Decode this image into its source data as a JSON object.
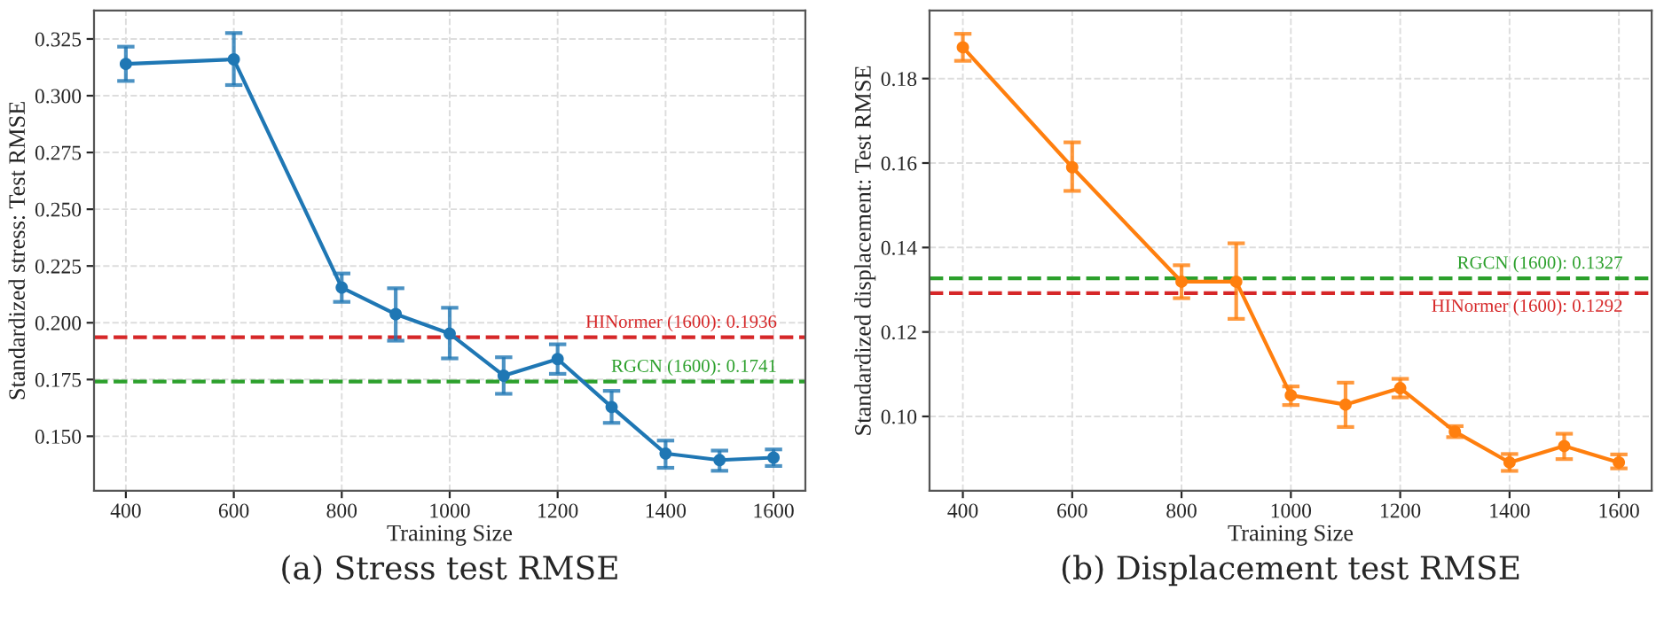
{
  "chart_data": [
    {
      "type": "line",
      "title": "(a) Stress test RMSE",
      "xlabel": "Training Size",
      "ylabel": "Standardized stress: Test RMSE",
      "x": [
        400,
        600,
        800,
        900,
        1000,
        1100,
        1200,
        1300,
        1400,
        1500,
        1600
      ],
      "series": [
        {
          "color": "#1f77b4",
          "values": [
            0.314,
            0.316,
            0.2155,
            0.2038,
            0.1952,
            0.1767,
            0.184,
            0.1629,
            0.1424,
            0.1395,
            0.1406
          ],
          "errors": [
            [
              0.3065,
              0.3216
            ],
            [
              0.3047,
              0.3276
            ],
            [
              0.2092,
              0.2217
            ],
            [
              0.1921,
              0.2152
            ],
            [
              0.1843,
              0.2066
            ],
            [
              0.1687,
              0.1848
            ],
            [
              0.1775,
              0.1905
            ],
            [
              0.1559,
              0.17
            ],
            [
              0.1361,
              0.1481
            ],
            [
              0.1348,
              0.1437
            ],
            [
              0.1369,
              0.1442
            ]
          ]
        }
      ],
      "ref_lines": [
        {
          "axis": "y",
          "value": 0.1936,
          "label": "HINormer (1600): 0.1936",
          "color": "#d62728",
          "line_style": "dashed"
        },
        {
          "axis": "y",
          "value": 0.1741,
          "label": "RGCN (1600): 0.1741",
          "color": "#2ca02c",
          "line_style": "dashed"
        }
      ],
      "xlim": [
        341,
        1659
      ],
      "ylim": [
        0.126,
        0.3375
      ],
      "xticks": [
        400,
        600,
        800,
        1000,
        1200,
        1400,
        1600
      ],
      "yticks": [
        {
          "value": 0.15,
          "label": "0.150"
        },
        0.175,
        {
          "value": 0.2,
          "label": "0.200"
        },
        0.225,
        {
          "value": 0.25,
          "label": "0.250"
        },
        0.275,
        {
          "value": 0.3,
          "label": "0.300"
        },
        0.325
      ],
      "grid": true,
      "marker": "circle",
      "line_style": "solid"
    },
    {
      "type": "line",
      "title": "(b) Displacement test RMSE",
      "xlabel": "Training Size",
      "ylabel": "Standardized displacement: Test RMSE",
      "x": [
        400,
        600,
        800,
        900,
        1000,
        1100,
        1200,
        1300,
        1400,
        1500,
        1600
      ],
      "series": [
        {
          "color": "#ff7f0e",
          "values": [
            0.1874,
            0.159,
            0.1319,
            0.1319,
            0.105,
            0.1028,
            0.1067,
            0.0964,
            0.0891,
            0.093,
            0.0891
          ],
          "errors": [
            [
              0.1842,
              0.1906
            ],
            [
              0.1534,
              0.1649
            ],
            [
              0.128,
              0.1358
            ],
            [
              0.1231,
              0.141
            ],
            [
              0.1027,
              0.1071
            ],
            [
              0.0975,
              0.108
            ],
            [
              0.1045,
              0.1089
            ],
            [
              0.0951,
              0.0977
            ],
            [
              0.0871,
              0.0911
            ],
            [
              0.0899,
              0.0959
            ],
            [
              0.0877,
              0.091
            ]
          ]
        }
      ],
      "ref_lines": [
        {
          "axis": "y",
          "value": 0.1327,
          "label": "RGCN (1600): 0.1327",
          "color": "#2ca02c",
          "line_style": "dashed"
        },
        {
          "axis": "y",
          "value": 0.1292,
          "label": "HINormer (1600): 0.1292",
          "color": "#d62728",
          "line_style": "dashed"
        }
      ],
      "xlim": [
        339,
        1660
      ],
      "ylim": [
        0.0824,
        0.1961
      ],
      "xticks": [
        400,
        600,
        800,
        1000,
        1200,
        1400,
        1600
      ],
      "yticks": [
        {
          "value": 0.1,
          "label": "0.10"
        },
        0.12,
        0.14,
        0.16,
        0.18
      ],
      "grid": true,
      "marker": "circle",
      "line_style": "solid"
    }
  ]
}
